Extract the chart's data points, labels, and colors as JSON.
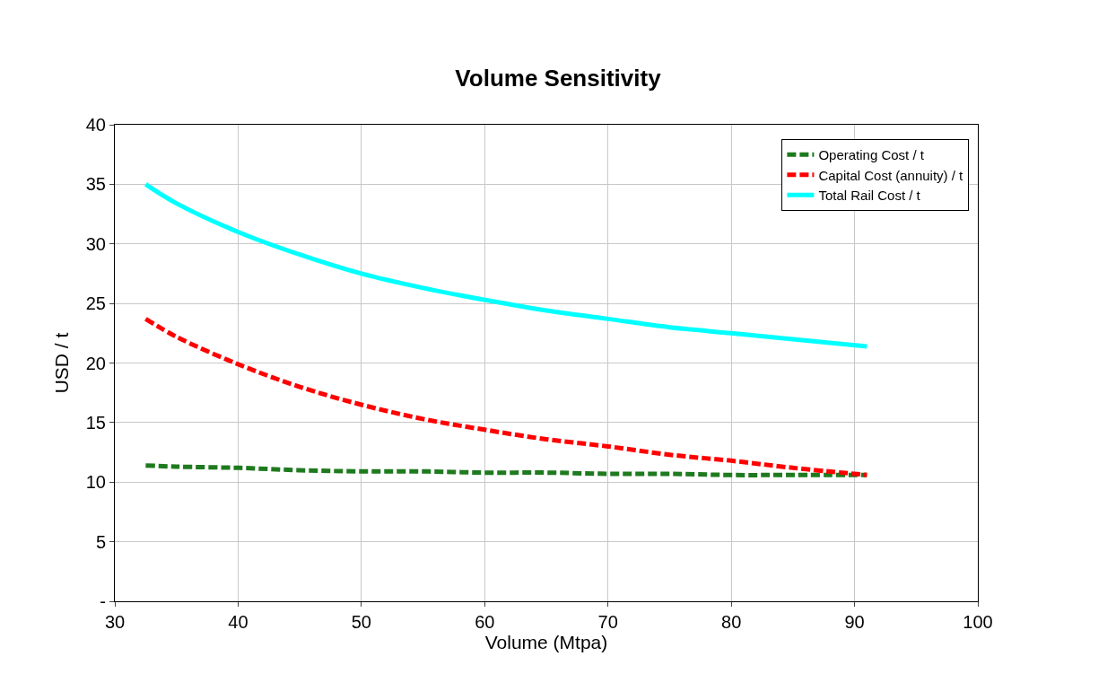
{
  "chart_data": {
    "type": "line",
    "title": "Volume Sensitivity",
    "xlabel": "Volume (Mtpa)",
    "ylabel": "USD / t",
    "x": [
      32.5,
      35,
      40,
      45,
      50,
      55,
      60,
      65,
      70,
      75,
      80,
      85,
      91
    ],
    "series": [
      {
        "name": "Operating Cost / t",
        "color": "#1e7a1e",
        "line_style": "dashed",
        "values": [
          11.4,
          11.3,
          11.2,
          11.0,
          10.9,
          10.9,
          10.8,
          10.8,
          10.7,
          10.7,
          10.6,
          10.6,
          10.6
        ]
      },
      {
        "name": "Capital Cost (annuity) / t",
        "color": "#ff0000",
        "line_style": "dashed",
        "values": [
          23.7,
          22.2,
          19.9,
          18.0,
          16.5,
          15.3,
          14.4,
          13.6,
          13.0,
          12.3,
          11.8,
          11.2,
          10.6
        ]
      },
      {
        "name": "Total Rail Cost / t",
        "color": "#00ffff",
        "line_style": "solid",
        "values": [
          35.0,
          33.4,
          31.0,
          29.1,
          27.5,
          26.3,
          25.3,
          24.4,
          23.7,
          23.0,
          22.5,
          22.0,
          21.4
        ]
      }
    ],
    "xlim": [
      30,
      100
    ],
    "xticks": [
      30,
      40,
      50,
      60,
      70,
      80,
      90,
      100
    ],
    "ylim": [
      0,
      40
    ],
    "yticks": [
      {
        "value": 0,
        "label": "-"
      },
      5,
      10,
      15,
      20,
      25,
      30,
      35,
      40
    ],
    "grid": true,
    "legend": "top right",
    "marker": "none"
  }
}
